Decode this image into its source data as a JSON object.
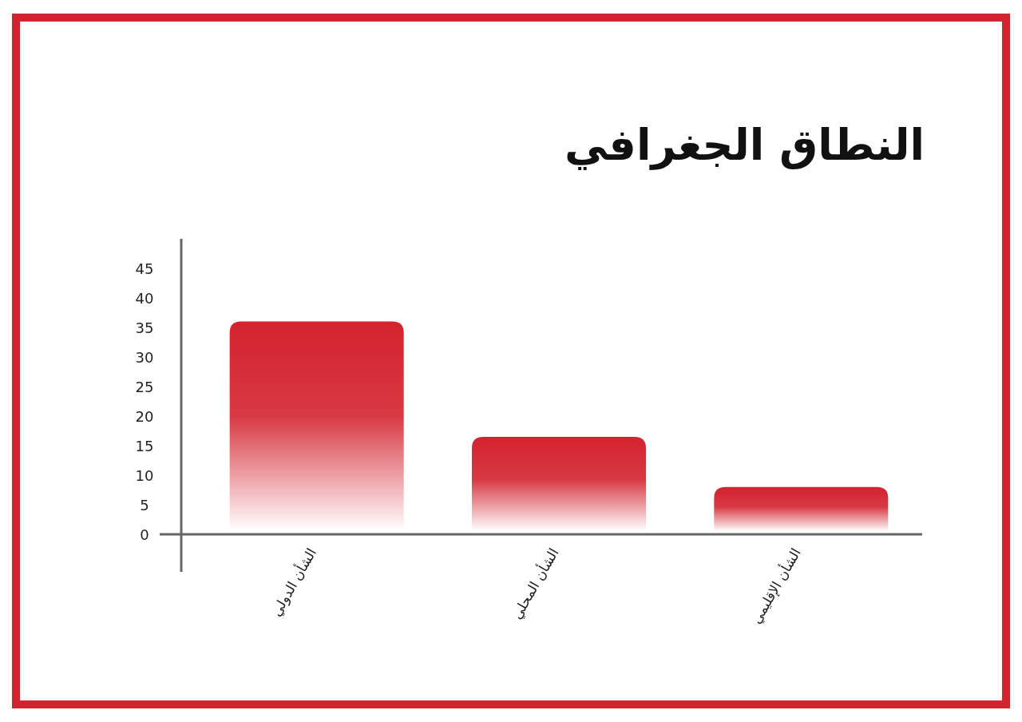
{
  "chart_data": {
    "type": "bar",
    "title": "النطاق الجغرافي",
    "categories": [
      "الشأن الدولي",
      "الشأن المحلي",
      "الشأن الإقليمي"
    ],
    "values": [
      36,
      16.5,
      8
    ],
    "color": "#d3232f",
    "ylim": [
      0,
      50
    ],
    "yticks": [
      0,
      5,
      10,
      15,
      20,
      25,
      30,
      35,
      40,
      45
    ],
    "grid": false
  }
}
